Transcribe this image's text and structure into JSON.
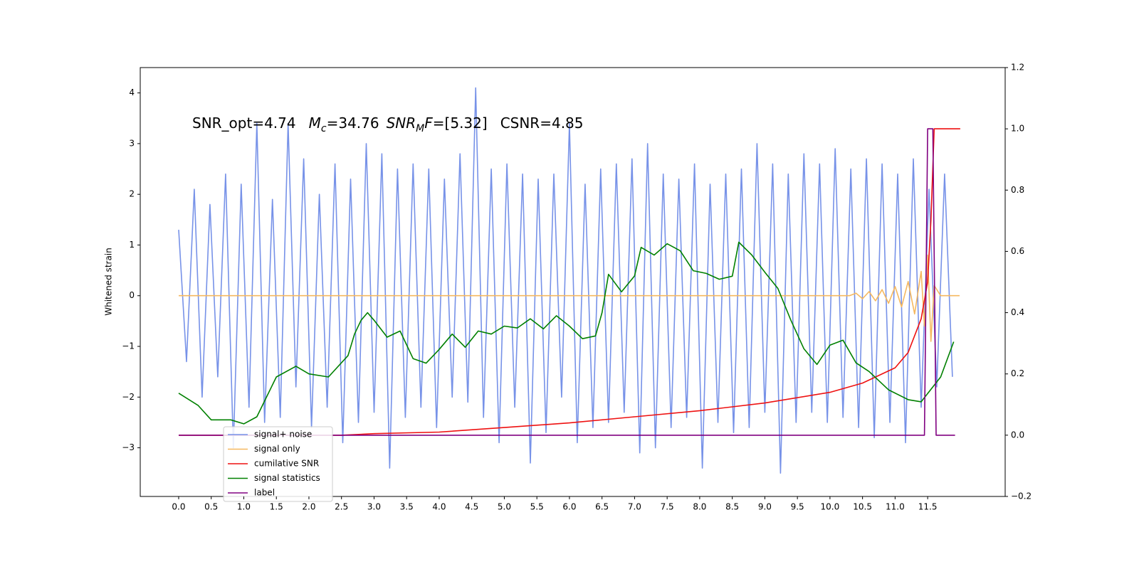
{
  "chart_data": {
    "type": "line",
    "annotation": [
      "SNR_opt=4.74",
      "M",
      "c",
      "=34.76",
      "SNR",
      "M",
      "F",
      "=[5.32]",
      "CSNR=4.85"
    ],
    "ylabel": "Whitened strain",
    "xlim": [
      -0.59,
      12.69
    ],
    "ylim": [
      -3.96,
      4.5
    ],
    "y2lim": [
      -0.2,
      1.2
    ],
    "xticks": [
      {
        "value": 0,
        "label": "0.0"
      },
      0.5,
      {
        "value": 1,
        "label": "1.0"
      },
      1.5,
      {
        "value": 2,
        "label": "2.0"
      },
      2.5,
      {
        "value": 3,
        "label": "3.0"
      },
      3.5,
      {
        "value": 4,
        "label": "4.0"
      },
      4.5,
      {
        "value": 5,
        "label": "5.0"
      },
      5.5,
      {
        "value": 6,
        "label": "6.0"
      },
      6.5,
      {
        "value": 7,
        "label": "7.0"
      },
      7.5,
      {
        "value": 8,
        "label": "8.0"
      },
      8.5,
      {
        "value": 9,
        "label": "9.0"
      },
      9.5,
      {
        "value": 10,
        "label": "10.0"
      },
      10.5,
      {
        "value": 11,
        "label": "11.0"
      },
      11.5
    ],
    "yticks": [
      {
        "value": -3,
        "label": "−3"
      },
      {
        "value": -2,
        "label": "−2"
      },
      {
        "value": -1,
        "label": "−1"
      },
      0,
      1,
      2,
      3,
      4
    ],
    "y2ticks": [
      {
        "value": -0.2,
        "label": "−0.2"
      },
      {
        "value": 0,
        "label": "0.0"
      },
      0.2,
      0.4,
      0.6,
      0.8,
      {
        "value": 1,
        "label": "1.0"
      },
      1.2
    ],
    "legend": "lower left",
    "series": [
      {
        "name": "signal+ noise",
        "color": "#7792e8",
        "axis": "y",
        "x": [
          0,
          0.12,
          0.24,
          0.36,
          0.48,
          0.6,
          0.72,
          0.84,
          0.96,
          1.08,
          1.2,
          1.32,
          1.44,
          1.56,
          1.68,
          1.8,
          1.92,
          2.04,
          2.16,
          2.28,
          2.4,
          2.52,
          2.64,
          2.76,
          2.88,
          3,
          3.12,
          3.24,
          3.36,
          3.48,
          3.6,
          3.72,
          3.84,
          3.96,
          4.08,
          4.2,
          4.32,
          4.44,
          4.56,
          4.68,
          4.8,
          4.92,
          5.04,
          5.16,
          5.28,
          5.4,
          5.52,
          5.64,
          5.76,
          5.88,
          6,
          6.12,
          6.24,
          6.36,
          6.48,
          6.6,
          6.72,
          6.84,
          6.96,
          7.08,
          7.2,
          7.32,
          7.44,
          7.56,
          7.68,
          7.8,
          7.92,
          8.04,
          8.16,
          8.28,
          8.4,
          8.52,
          8.64,
          8.76,
          8.88,
          9,
          9.12,
          9.24,
          9.36,
          9.48,
          9.6,
          9.72,
          9.84,
          9.96,
          10.08,
          10.2,
          10.32,
          10.44,
          10.56,
          10.68,
          10.8,
          10.92,
          11.04,
          11.16,
          11.28,
          11.4,
          11.52,
          11.64,
          11.76,
          11.88
        ],
        "values": [
          1.3,
          -1.3,
          2.1,
          -2.0,
          1.8,
          -1.6,
          2.4,
          -3.0,
          2.2,
          -2.2,
          3.4,
          -2.5,
          1.9,
          -2.4,
          3.4,
          -1.8,
          2.7,
          -2.6,
          2.0,
          -2.2,
          2.6,
          -2.9,
          2.3,
          -2.5,
          3.0,
          -2.3,
          2.8,
          -3.4,
          2.5,
          -2.4,
          2.6,
          -2.2,
          2.5,
          -2.6,
          2.3,
          -2.0,
          2.8,
          -2.1,
          4.1,
          -2.4,
          2.5,
          -2.9,
          2.6,
          -2.2,
          2.4,
          -3.3,
          2.3,
          -2.7,
          2.4,
          -2.0,
          3.4,
          -2.9,
          2.2,
          -2.6,
          2.5,
          -2.5,
          2.6,
          -2.3,
          2.7,
          -3.1,
          3.0,
          -3.0,
          2.4,
          -2.6,
          2.3,
          -2.4,
          2.6,
          -3.4,
          2.2,
          -2.5,
          2.4,
          -2.7,
          2.5,
          -2.6,
          3.0,
          -2.3,
          2.6,
          -3.5,
          2.4,
          -2.5,
          2.8,
          -2.3,
          2.6,
          -2.5,
          2.9,
          -2.4,
          2.5,
          -2.6,
          2.7,
          -2.8,
          2.6,
          -2.5,
          2.4,
          -2.9,
          2.7,
          -2.2,
          2.1,
          -1.8,
          2.4,
          -1.6
        ]
      },
      {
        "name": "signal only",
        "color": "#f5b860",
        "axis": "y",
        "x": [
          0,
          10.3,
          10.4,
          10.5,
          10.6,
          10.7,
          10.8,
          10.9,
          11.0,
          11.1,
          11.2,
          11.3,
          11.4,
          11.45,
          11.5,
          11.55,
          11.6,
          11.7,
          11.99
        ],
        "values": [
          0,
          0,
          0.05,
          -0.06,
          0.08,
          -0.1,
          0.12,
          -0.15,
          0.18,
          -0.22,
          0.28,
          -0.36,
          0.48,
          -0.6,
          0.8,
          -0.9,
          0.2,
          0,
          0
        ]
      },
      {
        "name": "cumilative SNR",
        "color": "#ee1111",
        "axis": "y2",
        "x": [
          0,
          2.5,
          3,
          4,
          5,
          6,
          7,
          8,
          9,
          10,
          10.5,
          11,
          11.2,
          11.4,
          11.5,
          11.55,
          11.6,
          12
        ],
        "values": [
          0,
          0,
          0.005,
          0.01,
          0.025,
          0.04,
          0.06,
          0.08,
          0.105,
          0.14,
          0.17,
          0.22,
          0.27,
          0.38,
          0.5,
          0.7,
          1.0,
          1.0
        ]
      },
      {
        "name": "signal statistics",
        "color": "#008000",
        "axis": "y2",
        "x": [
          0,
          0.3,
          0.5,
          0.8,
          1.0,
          1.2,
          1.5,
          1.8,
          2.0,
          2.3,
          2.6,
          2.7,
          2.8,
          2.9,
          3.0,
          3.2,
          3.4,
          3.6,
          3.8,
          4.0,
          4.2,
          4.4,
          4.6,
          4.8,
          5.0,
          5.2,
          5.4,
          5.6,
          5.8,
          6.0,
          6.2,
          6.4,
          6.5,
          6.6,
          6.8,
          7.0,
          7.1,
          7.3,
          7.5,
          7.7,
          7.9,
          8.1,
          8.3,
          8.5,
          8.6,
          8.8,
          9.0,
          9.2,
          9.4,
          9.6,
          9.8,
          10.0,
          10.2,
          10.4,
          10.6,
          10.9,
          11.2,
          11.4,
          11.7,
          11.9
        ],
        "values": [
          0.137,
          0.097,
          0.05,
          0.05,
          0.037,
          0.06,
          0.19,
          0.225,
          0.2,
          0.19,
          0.26,
          0.33,
          0.375,
          0.4,
          0.375,
          0.32,
          0.34,
          0.25,
          0.235,
          0.28,
          0.33,
          0.287,
          0.34,
          0.33,
          0.356,
          0.35,
          0.38,
          0.347,
          0.39,
          0.356,
          0.315,
          0.324,
          0.4,
          0.525,
          0.468,
          0.52,
          0.613,
          0.588,
          0.625,
          0.602,
          0.537,
          0.528,
          0.509,
          0.519,
          0.63,
          0.588,
          0.532,
          0.479,
          0.375,
          0.282,
          0.231,
          0.294,
          0.31,
          0.236,
          0.208,
          0.148,
          0.116,
          0.109,
          0.19,
          0.305
        ]
      },
      {
        "name": "label",
        "color": "#800080",
        "axis": "y2",
        "x": [
          0,
          11.45,
          11.5,
          11.58,
          11.63,
          11.92
        ],
        "values": [
          0,
          0,
          1,
          1,
          0,
          0
        ]
      }
    ]
  }
}
